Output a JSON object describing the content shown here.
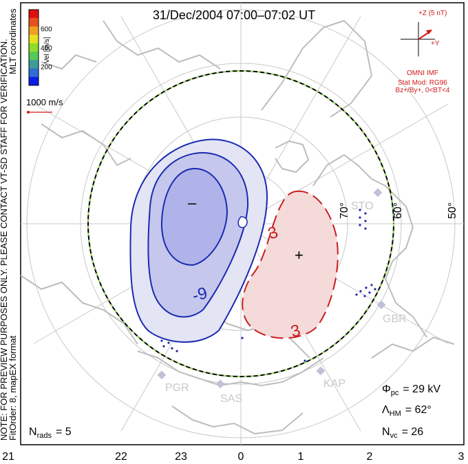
{
  "title": "31/Dec/2004 07:00–07:02 UT",
  "side_note": "NOTE: FOR PREVIEW PURPOSES ONLY. PLEASE CONTACT VT-SD STAFF FOR VERIFICATION.",
  "fit_note": "FitOrder: 8, mapEX format",
  "coord_label": "MLT coordinates",
  "colorbar": {
    "label": "Vel [m/s]",
    "ticks": [
      "200",
      "400",
      "600"
    ],
    "colors": [
      "#0a1ee6",
      "#2f6fd8",
      "#3d9b9b",
      "#55c85a",
      "#8fdc2a",
      "#e8e020",
      "#f0a020",
      "#e85020",
      "#e01010"
    ]
  },
  "vector_scale": {
    "label": "1000 m/s",
    "color": "#d01818"
  },
  "imf": {
    "clock_z": "+Z (5 nT)",
    "clock_y": "+Y",
    "model_lines": [
      "OMNI IMF",
      "Stat Mod: RG96",
      "Bz+/By+, 0<BT<4"
    ],
    "color": "#d01818"
  },
  "latitude_labels": [
    "70°",
    "60°",
    "50°"
  ],
  "stations": [
    "STO",
    "GBR",
    "KAP",
    "SAS",
    "PGR"
  ],
  "mlt_labels": [
    "21",
    "22",
    "23",
    "0",
    "1",
    "2",
    "3"
  ],
  "contours": {
    "negative_label": "-9",
    "positive_label": "3",
    "min_marker": "–",
    "max_marker": "+"
  },
  "stats": {
    "phi_pc_sym": "Φ",
    "phi_pc_sub": "pc",
    "phi_pc_value": "= 29 kV",
    "lambda_hm_sym": "Λ",
    "lambda_hm_sub": "HM",
    "lambda_hm_value": "= 62°",
    "n_vc_sym": "N",
    "n_vc_sub": "vc",
    "n_vc_value": "= 26",
    "n_rads_sym": "N",
    "n_rads_sub": "rads",
    "n_rads_value": "= 5"
  }
}
